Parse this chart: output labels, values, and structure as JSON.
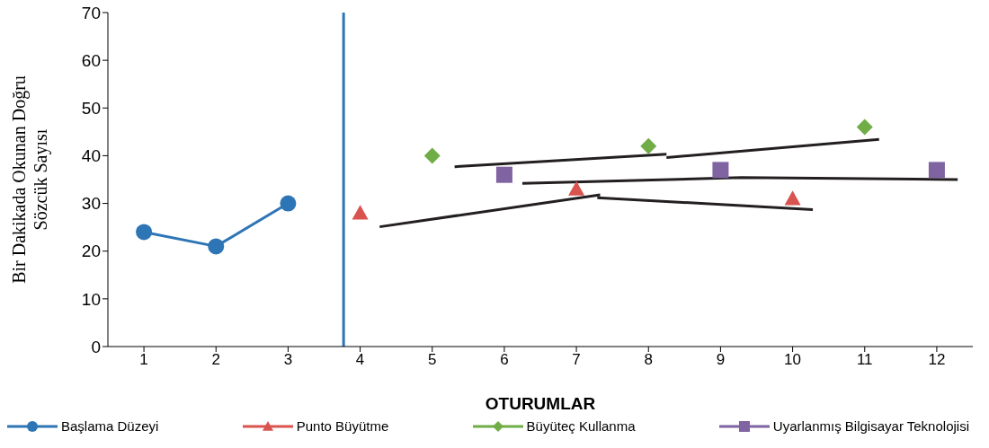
{
  "chart_data": {
    "type": "line",
    "xlabel": "OTURUMLAR",
    "ylabel": "Bir Dakikada Okunan Doğru\nSözcük Sayısı",
    "xlim": [
      0.5,
      12.5
    ],
    "xticks": [
      1,
      2,
      3,
      4,
      5,
      6,
      7,
      8,
      9,
      10,
      11,
      12
    ],
    "ylim": [
      0,
      70
    ],
    "yticks": [
      0,
      10,
      20,
      30,
      40,
      50,
      60,
      70
    ],
    "grid": false,
    "legend": "bottom",
    "line_style": "solid",
    "ref_lines": [
      {
        "axis": "x",
        "value": 3.77,
        "color": "#2e75b6"
      }
    ],
    "series": [
      {
        "name": "Başlama Düzeyi",
        "marker": "circle",
        "color": "#2e75b6",
        "x": [
          1,
          2,
          3
        ],
        "values": [
          24,
          21,
          30
        ]
      },
      {
        "name": "Punto Büyütme",
        "type": "scatter",
        "marker": "triangle",
        "color": "#d9534f",
        "x": [
          4,
          7,
          10
        ],
        "values": [
          28,
          33,
          31
        ]
      },
      {
        "name": "Büyüteç Kullanma",
        "type": "scatter",
        "marker": "diamond",
        "color": "#70ad47",
        "x": [
          5,
          8,
          11
        ],
        "values": [
          40,
          42,
          46
        ]
      },
      {
        "name": "Uyarlanmış Bilgisayar Teknolojisi",
        "type": "scatter",
        "marker": "square",
        "color": "#8064a2",
        "x": [
          6,
          9,
          12
        ],
        "values": [
          36,
          37,
          37
        ]
      },
      {
        "type": "line",
        "marker": "none",
        "color": "#231f20",
        "x": [
          4.27,
          7.33
        ],
        "values": [
          25.1,
          31.8
        ]
      },
      {
        "type": "line",
        "marker": "none",
        "color": "#231f20",
        "x": [
          7.29,
          10.28
        ],
        "values": [
          31.2,
          28.7
        ]
      },
      {
        "type": "line",
        "marker": "none",
        "color": "#231f20",
        "x": [
          5.31,
          8.25
        ],
        "values": [
          37.7,
          40.3
        ]
      },
      {
        "type": "line",
        "marker": "none",
        "color": "#231f20",
        "x": [
          8.25,
          11.2
        ],
        "values": [
          39.6,
          43.4
        ]
      },
      {
        "type": "line",
        "marker": "none",
        "color": "#231f20",
        "x": [
          6.25,
          9.29,
          12.29
        ],
        "values": [
          34.2,
          35.4,
          35.0
        ]
      }
    ]
  }
}
